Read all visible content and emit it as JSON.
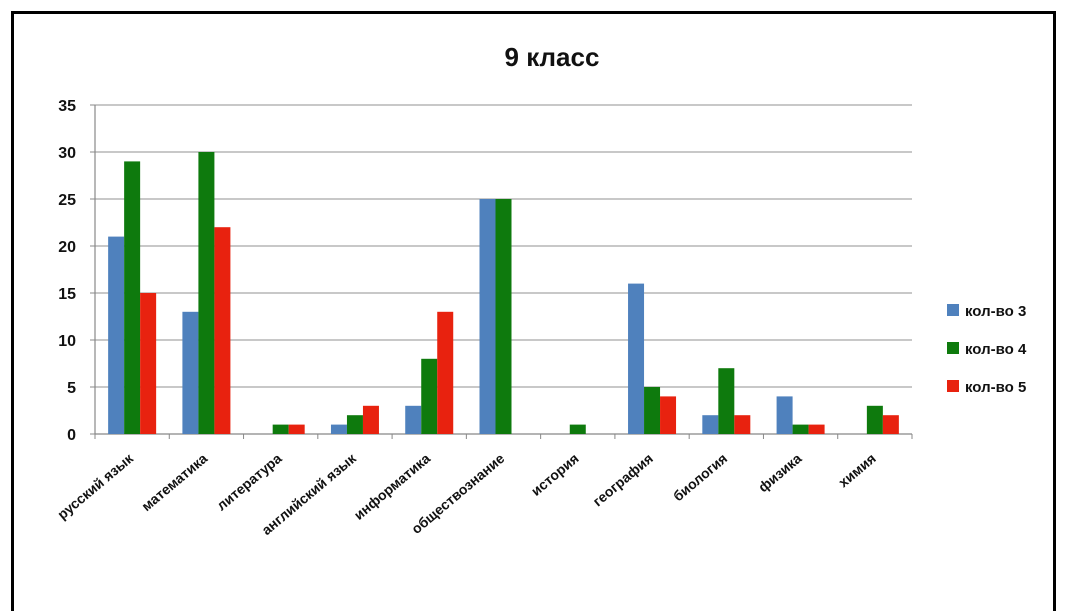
{
  "chart_data": {
    "type": "bar",
    "title": "9 класс",
    "xlabel": "",
    "ylabel": "",
    "ylim": [
      0,
      35
    ],
    "yticks": [
      0,
      5,
      10,
      15,
      20,
      25,
      30,
      35
    ],
    "grid": true,
    "legend_position": "right",
    "categories": [
      "русский язык",
      "математика",
      "литература",
      "английский язык",
      "информатика",
      "обществознание",
      "история",
      "география",
      "биология",
      "физика",
      "химия"
    ],
    "series": [
      {
        "name": "кол-во 3",
        "color": "#4F81BD",
        "values": [
          21,
          13,
          0,
          1,
          3,
          25,
          0,
          16,
          2,
          4,
          0
        ]
      },
      {
        "name": "кол-во 4",
        "color": "#0E7A0D",
        "values": [
          29,
          30,
          1,
          2,
          8,
          25,
          1,
          5,
          7,
          1,
          3
        ]
      },
      {
        "name": "кол-во 5",
        "color": "#E8220F",
        "values": [
          15,
          22,
          1,
          3,
          13,
          0,
          0,
          4,
          2,
          1,
          2
        ]
      }
    ]
  }
}
